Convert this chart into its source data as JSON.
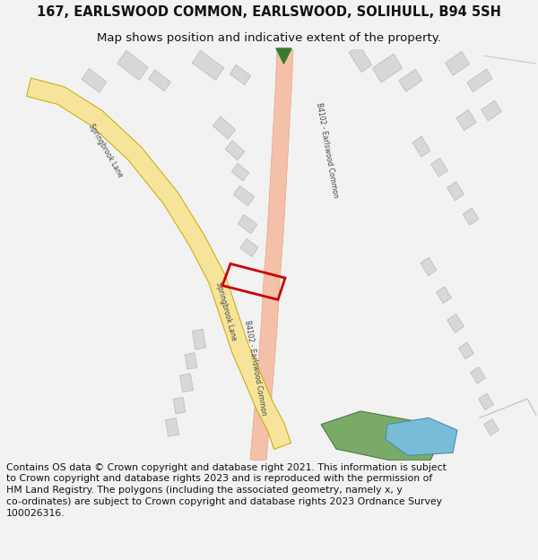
{
  "title": "167, EARLSWOOD COMMON, EARLSWOOD, SOLIHULL, B94 5SH",
  "subtitle": "Map shows position and indicative extent of the property.",
  "footer": "Contains OS data © Crown copyright and database right 2021. This information is subject to Crown copyright and database rights 2023 and is reproduced with the permission of HM Land Registry. The polygons (including the associated geometry, namely x, y co-ordinates) are subject to Crown copyright and database rights 2023 Ordnance Survey 100026316.",
  "page_bg": "#f2f2f2",
  "map_bg": "#ffffff",
  "road_b4102_face": "#f5c0a8",
  "road_b4102_edge": "#e0a888",
  "road_spring_face": "#f5e49a",
  "road_spring_edge": "#c8a800",
  "building_face": "#d8d8d8",
  "building_edge": "#b8b8b8",
  "plot_edge": "#cc0000",
  "plot_lw": 2.0,
  "green_face": "#7aaa68",
  "green_edge": "#507840",
  "blue_face": "#78bcd8",
  "blue_edge": "#4890b0",
  "arrow_green": "#3a7a30",
  "title_fs": 10.5,
  "subtitle_fs": 9.5,
  "footer_fs": 7.8,
  "label_color": "#444444",
  "label_fs": 5.5
}
